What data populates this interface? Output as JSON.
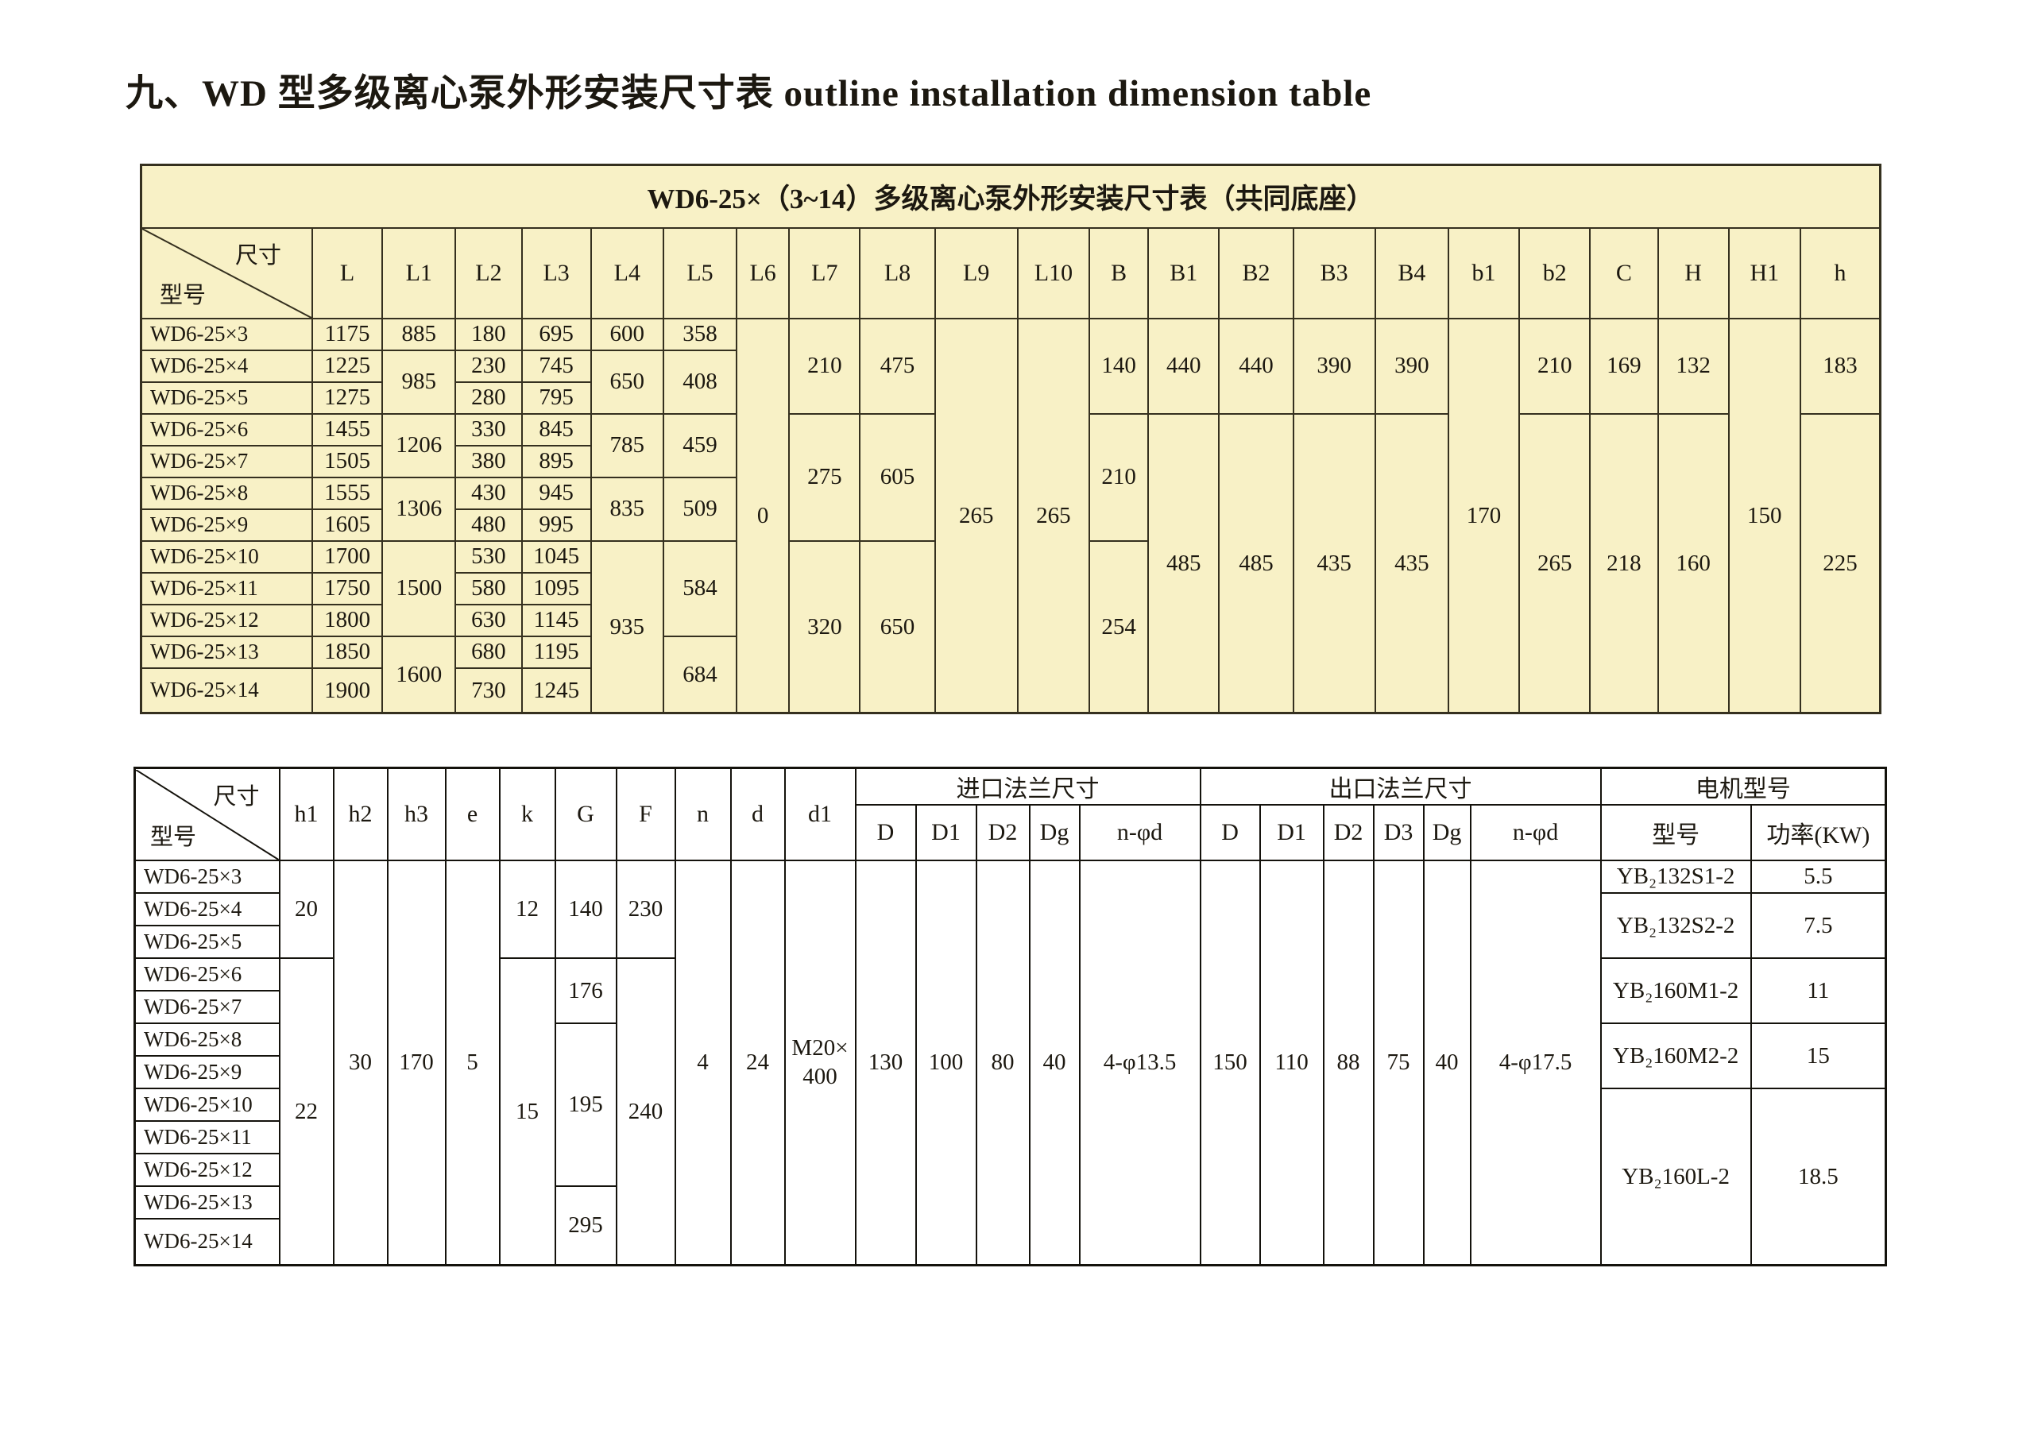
{
  "page_title": "九、WD 型多级离心泵外形安装尺寸表 outline installation dimension table",
  "table1": {
    "title": "WD6-25×（3~14）多级离心泵外形安装尺寸表（共同底座）",
    "corner": {
      "top": "尺寸",
      "bottom": "型号"
    },
    "columns": [
      "L",
      "L1",
      "L2",
      "L3",
      "L4",
      "L5",
      "L6",
      "L7",
      "L8",
      "L9",
      "L10",
      "B",
      "B1",
      "B2",
      "B3",
      "B4",
      "b1",
      "b2",
      "C",
      "H",
      "H1",
      "h"
    ],
    "models": [
      "WD6-25×3",
      "WD6-25×4",
      "WD6-25×5",
      "WD6-25×6",
      "WD6-25×7",
      "WD6-25×8",
      "WD6-25×9",
      "WD6-25×10",
      "WD6-25×11",
      "WD6-25×12",
      "WD6-25×13",
      "WD6-25×14"
    ],
    "cells": [
      [
        [
          1,
          "1175"
        ],
        [
          1,
          "1225"
        ],
        [
          1,
          "1275"
        ],
        [
          1,
          "1455"
        ],
        [
          1,
          "1505"
        ],
        [
          1,
          "1555"
        ],
        [
          1,
          "1605"
        ],
        [
          1,
          "1700"
        ],
        [
          1,
          "1750"
        ],
        [
          1,
          "1800"
        ],
        [
          1,
          "1850"
        ],
        [
          1,
          "1900"
        ]
      ],
      [
        [
          1,
          "885"
        ],
        [
          2,
          "985"
        ],
        [
          2,
          "1206"
        ],
        [
          2,
          "1306"
        ],
        [
          3,
          "1500"
        ],
        [
          2,
          "1600"
        ]
      ],
      [
        [
          1,
          "180"
        ],
        [
          1,
          "230"
        ],
        [
          1,
          "280"
        ],
        [
          1,
          "330"
        ],
        [
          1,
          "380"
        ],
        [
          1,
          "430"
        ],
        [
          1,
          "480"
        ],
        [
          1,
          "530"
        ],
        [
          1,
          "580"
        ],
        [
          1,
          "630"
        ],
        [
          1,
          "680"
        ],
        [
          1,
          "730"
        ]
      ],
      [
        [
          1,
          "695"
        ],
        [
          1,
          "745"
        ],
        [
          1,
          "795"
        ],
        [
          1,
          "845"
        ],
        [
          1,
          "895"
        ],
        [
          1,
          "945"
        ],
        [
          1,
          "995"
        ],
        [
          1,
          "1045"
        ],
        [
          1,
          "1095"
        ],
        [
          1,
          "1145"
        ],
        [
          1,
          "1195"
        ],
        [
          1,
          "1245"
        ]
      ],
      [
        [
          1,
          "600"
        ],
        [
          2,
          "650"
        ],
        [
          2,
          "785"
        ],
        [
          2,
          "835"
        ],
        [
          5,
          "935"
        ]
      ],
      [
        [
          1,
          "358"
        ],
        [
          2,
          "408"
        ],
        [
          2,
          "459"
        ],
        [
          2,
          "509"
        ],
        [
          3,
          "584"
        ],
        [
          2,
          "684"
        ]
      ],
      [
        [
          12,
          "0"
        ]
      ],
      [
        [
          3,
          "210"
        ],
        [
          4,
          "275"
        ],
        [
          5,
          "320"
        ]
      ],
      [
        [
          3,
          "475"
        ],
        [
          4,
          "605"
        ],
        [
          5,
          "650"
        ]
      ],
      [
        [
          12,
          "265"
        ]
      ],
      [
        [
          12,
          "265"
        ]
      ],
      [
        [
          3,
          "140"
        ],
        [
          4,
          "210"
        ],
        [
          5,
          "254"
        ]
      ],
      [
        [
          3,
          "440"
        ],
        [
          9,
          "485"
        ]
      ],
      [
        [
          3,
          "440"
        ],
        [
          9,
          "485"
        ]
      ],
      [
        [
          3,
          "390"
        ],
        [
          9,
          "435"
        ]
      ],
      [
        [
          3,
          "390"
        ],
        [
          9,
          "435"
        ]
      ],
      [
        [
          12,
          "170"
        ]
      ],
      [
        [
          3,
          "210"
        ],
        [
          9,
          "265"
        ]
      ],
      [
        [
          3,
          "169"
        ],
        [
          9,
          "218"
        ]
      ],
      [
        [
          3,
          "132"
        ],
        [
          9,
          "160"
        ]
      ],
      [
        [
          12,
          "150"
        ]
      ],
      [
        [
          3,
          "183"
        ],
        [
          9,
          "225"
        ]
      ]
    ]
  },
  "table2": {
    "corner": {
      "top": "尺寸",
      "bottom": "型号"
    },
    "columns": [
      "h1",
      "h2",
      "h3",
      "e",
      "k",
      "G",
      "F",
      "n",
      "d",
      "d1",
      "D",
      "D1",
      "D2",
      "Dg",
      "n-φd",
      "D",
      "D1",
      "D2",
      "D3",
      "Dg",
      "n-φd",
      "型号",
      "功率(KW)"
    ],
    "groups": [
      {
        "label": "进口法兰尺寸",
        "start": 10,
        "span": 5
      },
      {
        "label": "出口法兰尺寸",
        "start": 15,
        "span": 6
      },
      {
        "label": "电机型号",
        "start": 21,
        "span": 2
      }
    ],
    "models": [
      "WD6-25×3",
      "WD6-25×4",
      "WD6-25×5",
      "WD6-25×6",
      "WD6-25×7",
      "WD6-25×8",
      "WD6-25×9",
      "WD6-25×10",
      "WD6-25×11",
      "WD6-25×12",
      "WD6-25×13",
      "WD6-25×14"
    ],
    "cells": [
      [
        [
          3,
          "20"
        ],
        [
          9,
          "22"
        ]
      ],
      [
        [
          12,
          "30"
        ]
      ],
      [
        [
          12,
          "170"
        ]
      ],
      [
        [
          12,
          "5"
        ]
      ],
      [
        [
          3,
          "12"
        ],
        [
          9,
          "15"
        ]
      ],
      [
        [
          3,
          "140"
        ],
        [
          2,
          "176"
        ],
        [
          5,
          "195"
        ],
        [
          2,
          "295"
        ]
      ],
      [
        [
          3,
          "230"
        ],
        [
          9,
          "240"
        ]
      ],
      [
        [
          12,
          "4"
        ]
      ],
      [
        [
          12,
          "24"
        ]
      ],
      [
        [
          12,
          "M20×\n400"
        ]
      ],
      [
        [
          12,
          "130"
        ]
      ],
      [
        [
          12,
          "100"
        ]
      ],
      [
        [
          12,
          "80"
        ]
      ],
      [
        [
          12,
          "40"
        ]
      ],
      [
        [
          12,
          "4-φ13.5"
        ]
      ],
      [
        [
          12,
          "150"
        ]
      ],
      [
        [
          12,
          "110"
        ]
      ],
      [
        [
          12,
          "88"
        ]
      ],
      [
        [
          12,
          "75"
        ]
      ],
      [
        [
          12,
          "40"
        ]
      ],
      [
        [
          12,
          "4-φ17.5"
        ]
      ],
      [
        [
          1,
          "YB₂132S1-2"
        ],
        [
          2,
          "YB₂132S2-2"
        ],
        [
          2,
          "YB₂160M1-2"
        ],
        [
          2,
          "YB₂160M2-2"
        ],
        [
          5,
          "YB₂160L-2"
        ]
      ],
      [
        [
          1,
          "5.5"
        ],
        [
          2,
          "7.5"
        ],
        [
          2,
          "11"
        ],
        [
          2,
          "15"
        ],
        [
          5,
          "18.5"
        ]
      ]
    ]
  },
  "colors": {
    "table1_fill": "#f8f1c6",
    "table1_border": "#35301f",
    "table2_border": "#14120c",
    "text": "#1c1810"
  }
}
